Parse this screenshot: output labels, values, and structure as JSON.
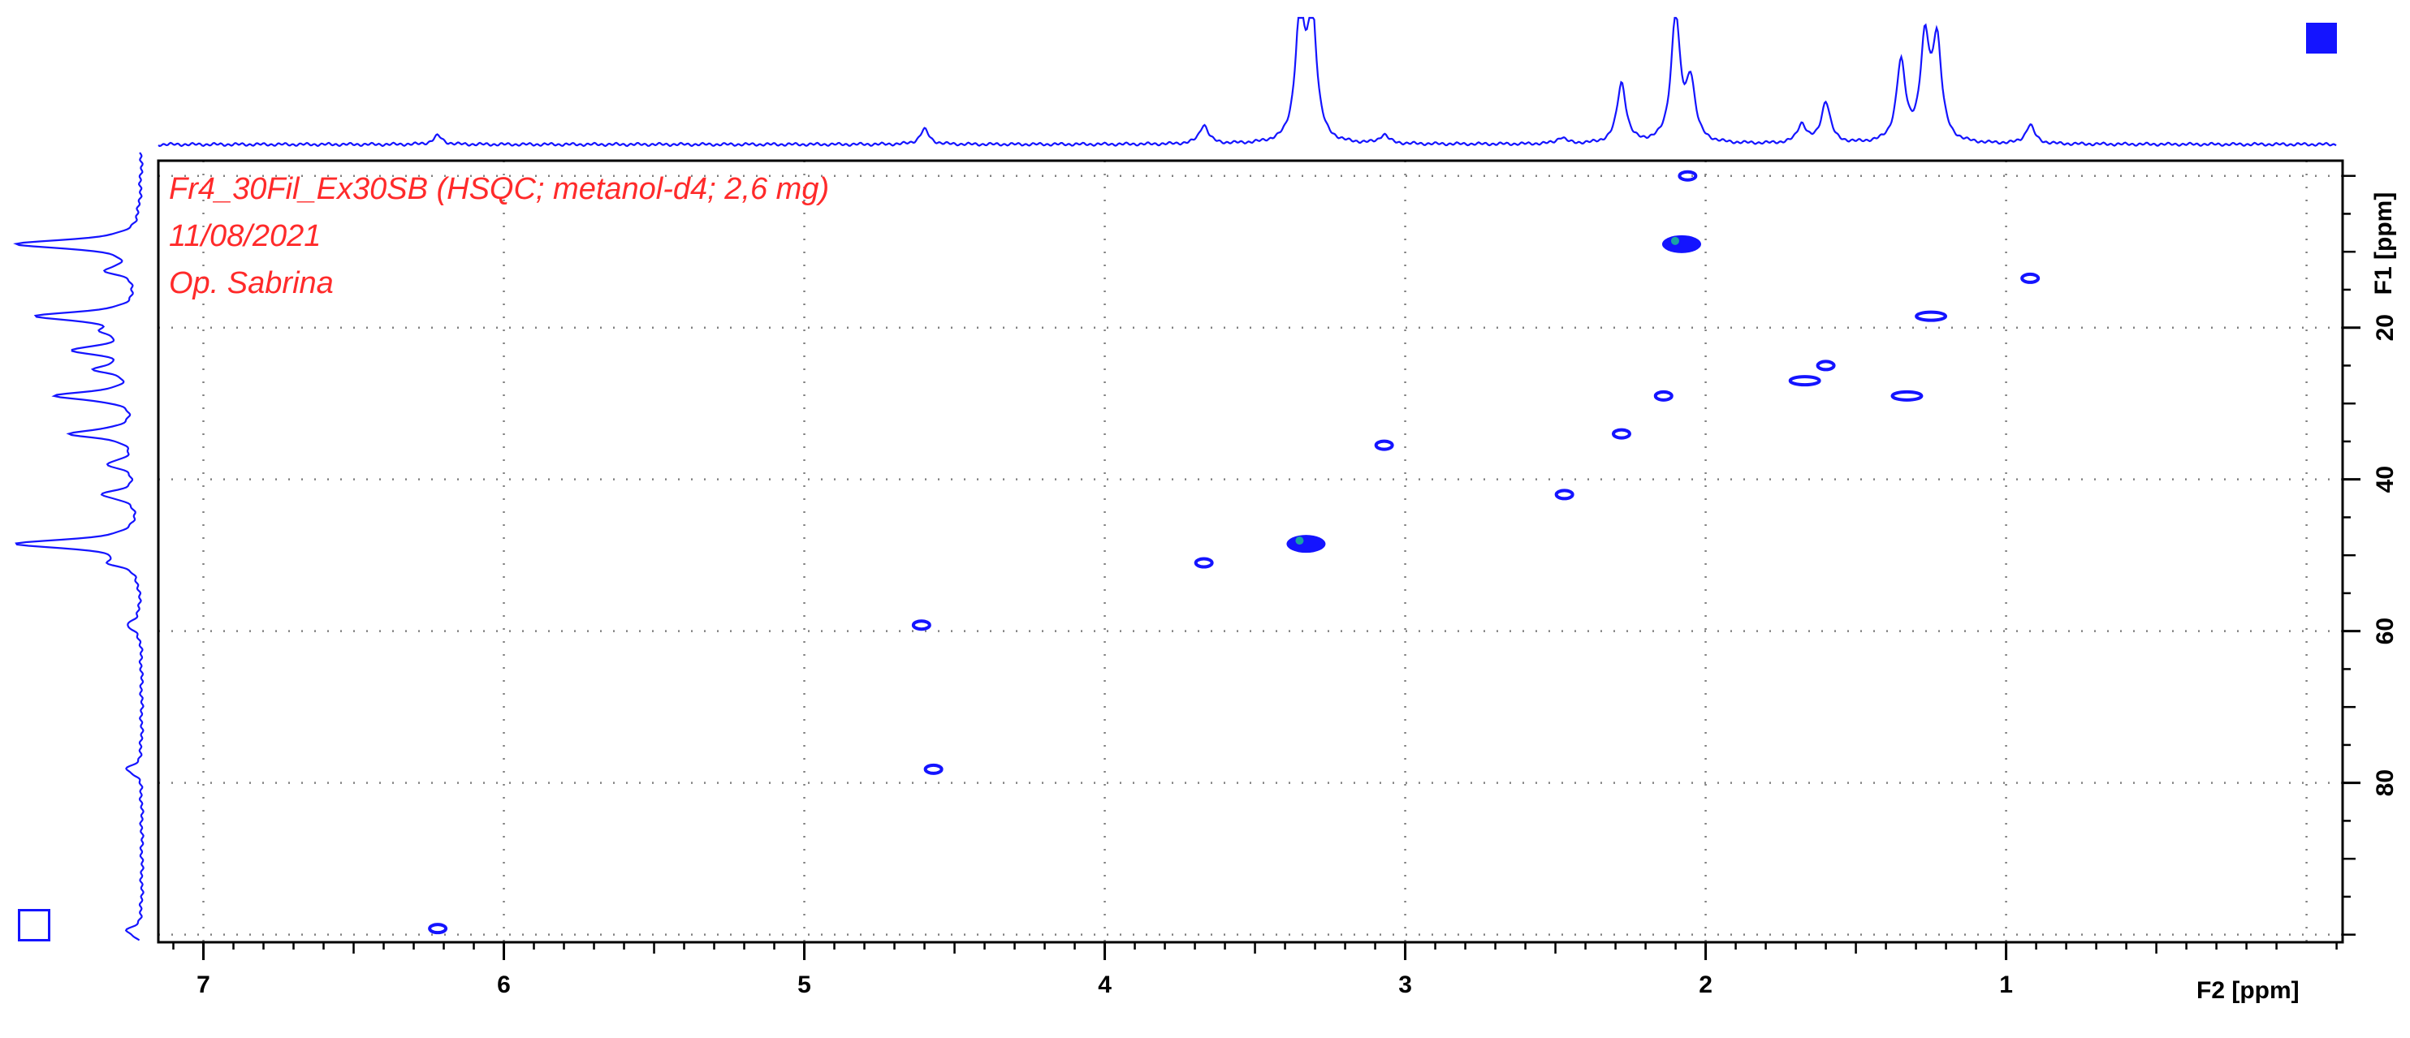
{
  "title_lines": [
    "Fr4_30Fil_Ex30SB (HSQC; metanol-d4; 2,6 mg)",
    "11/08/2021",
    "Op. Sabrina"
  ],
  "colors": {
    "annotation": "#ff2a2a",
    "spectrum": "#1414ff",
    "contour": "#1414ff",
    "contour_accent": "#1aa3a3",
    "grid": "#808080",
    "frame": "#000000"
  },
  "chart_data": {
    "type": "scatter",
    "subtype": "2D HSQC NMR contour plot",
    "xlabel": "F2 [ppm]",
    "ylabel": "F1 [ppm]",
    "xlim": [
      7.15,
      -0.12
    ],
    "ylim": [
      -2,
      101
    ],
    "x_reversed": true,
    "y_reversed": true,
    "x_ticks": [
      "7",
      "6",
      "5",
      "4",
      "3",
      "2",
      "1"
    ],
    "y_ticks": [
      "20",
      "40",
      "60",
      "80"
    ],
    "grid": true,
    "cross_peaks": [
      {
        "x": 6.22,
        "y": 99.2
      },
      {
        "x": 4.61,
        "y": 59.2
      },
      {
        "x": 4.57,
        "y": 78.2
      },
      {
        "x": 3.67,
        "y": 51.0
      },
      {
        "x": 3.33,
        "y": 48.5
      },
      {
        "x": 3.07,
        "y": 35.5
      },
      {
        "x": 2.47,
        "y": 42.0
      },
      {
        "x": 2.28,
        "y": 34.0
      },
      {
        "x": 2.14,
        "y": 29.0
      },
      {
        "x": 2.08,
        "y": 9.0
      },
      {
        "x": 2.06,
        "y": 0.0
      },
      {
        "x": 1.67,
        "y": 27.0
      },
      {
        "x": 1.6,
        "y": 25.0
      },
      {
        "x": 1.33,
        "y": 29.0
      },
      {
        "x": 1.25,
        "y": 18.5
      },
      {
        "x": 0.92,
        "y": 13.5
      }
    ],
    "f2_projection_peaks": [
      {
        "x": 6.22,
        "h": 0.07
      },
      {
        "x": 4.6,
        "h": 0.12
      },
      {
        "x": 3.67,
        "h": 0.15
      },
      {
        "x": 3.35,
        "h": 1.0
      },
      {
        "x": 3.31,
        "h": 1.0
      },
      {
        "x": 3.07,
        "h": 0.07
      },
      {
        "x": 2.48,
        "h": 0.05
      },
      {
        "x": 2.28,
        "h": 0.48
      },
      {
        "x": 2.1,
        "h": 1.0
      },
      {
        "x": 2.05,
        "h": 0.47
      },
      {
        "x": 1.68,
        "h": 0.15
      },
      {
        "x": 1.6,
        "h": 0.33
      },
      {
        "x": 1.35,
        "h": 0.63
      },
      {
        "x": 1.27,
        "h": 0.78
      },
      {
        "x": 1.23,
        "h": 0.78
      },
      {
        "x": 0.92,
        "h": 0.15
      }
    ],
    "f1_projection_peaks": [
      {
        "y": 9.0,
        "h": 1.0
      },
      {
        "y": 12.5,
        "h": 0.25
      },
      {
        "y": 18.5,
        "h": 0.8
      },
      {
        "y": 20.5,
        "h": 0.2
      },
      {
        "y": 23.0,
        "h": 0.5
      },
      {
        "y": 25.5,
        "h": 0.3
      },
      {
        "y": 29.0,
        "h": 0.65
      },
      {
        "y": 34.0,
        "h": 0.55
      },
      {
        "y": 38.0,
        "h": 0.25
      },
      {
        "y": 42.0,
        "h": 0.3
      },
      {
        "y": 48.5,
        "h": 1.0
      },
      {
        "y": 51.0,
        "h": 0.2
      },
      {
        "y": 59.2,
        "h": 0.12
      },
      {
        "y": 78.2,
        "h": 0.12
      },
      {
        "y": 99.5,
        "h": 0.12
      }
    ]
  }
}
